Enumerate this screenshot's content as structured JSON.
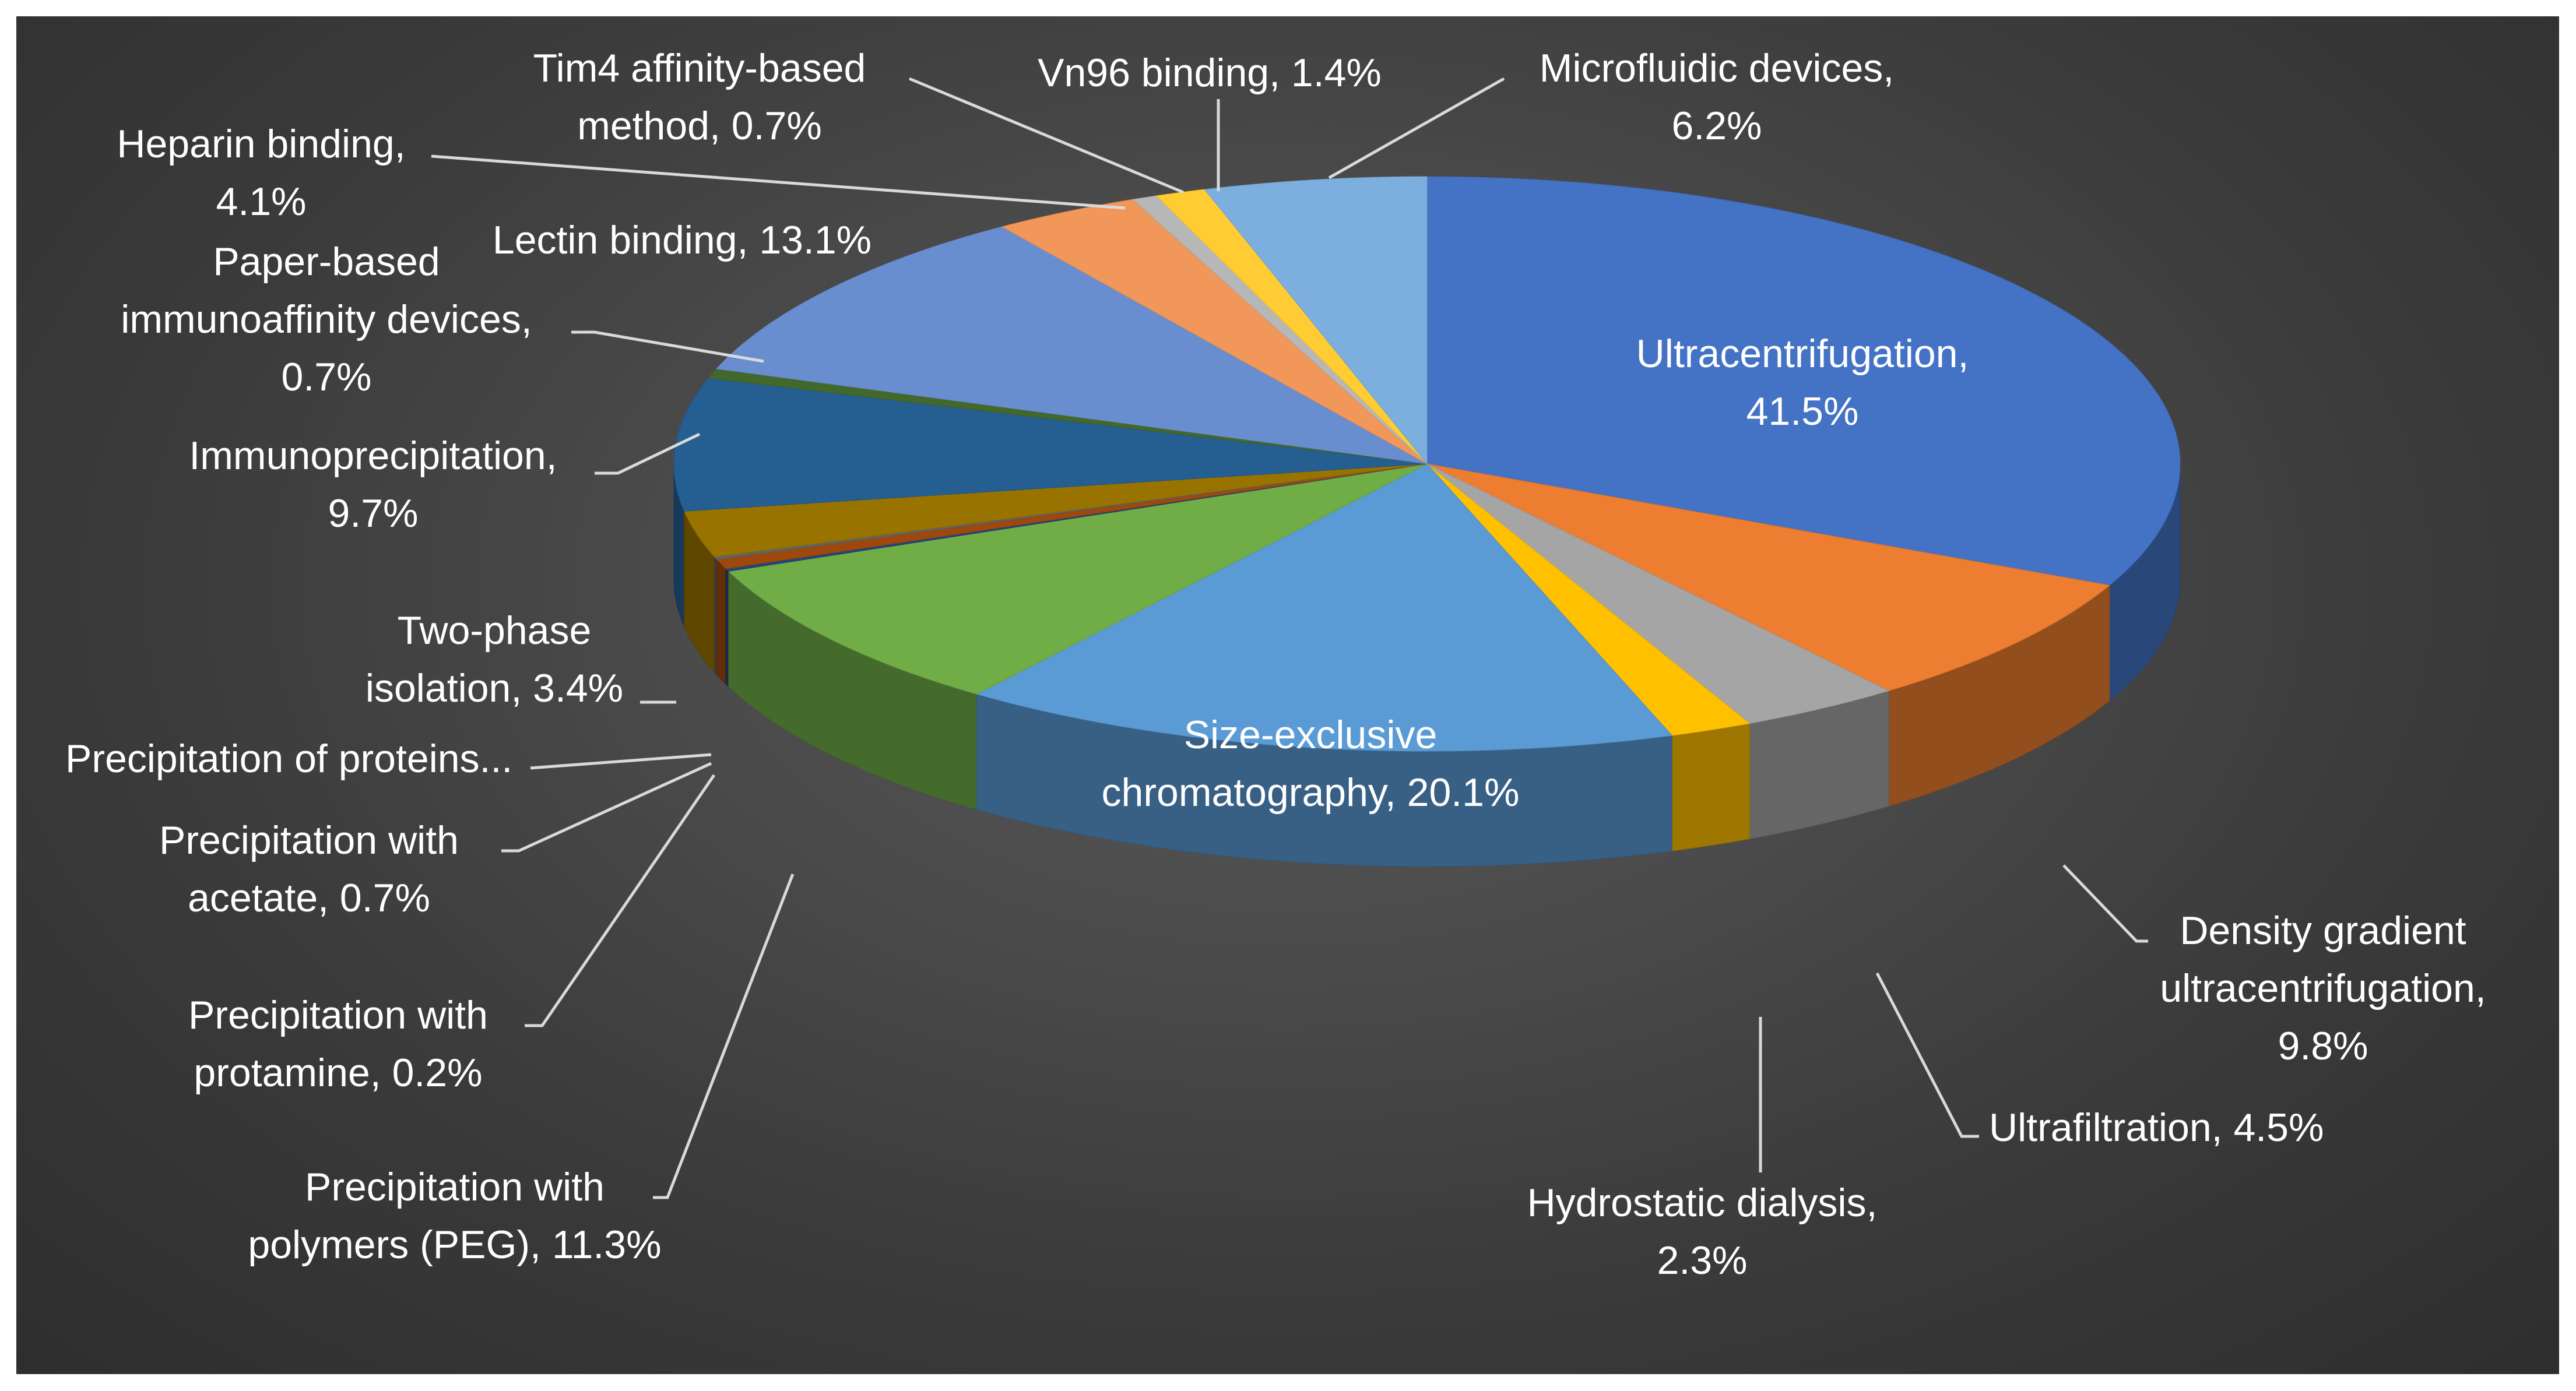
{
  "chart_data": {
    "type": "pie",
    "title": "",
    "style": "3d",
    "background": "#404040",
    "slices": [
      {
        "name": "Ultracentrifugation",
        "value": 41.5,
        "color": "#4472C4",
        "label": [
          "Ultracentrifugation,",
          "41.5%"
        ]
      },
      {
        "name": "Density gradient ultracentrifugation",
        "value": 9.8,
        "color": "#ED7D31",
        "label": [
          "Density gradient",
          "ultracentrifugation,",
          "9.8%"
        ]
      },
      {
        "name": "Ultrafiltration",
        "value": 4.5,
        "color": "#A5A5A5",
        "label": [
          "Ultrafiltration, 4.5%"
        ]
      },
      {
        "name": "Hydrostatic dialysis",
        "value": 2.3,
        "color": "#FFC000",
        "label": [
          "Hydrostatic dialysis,",
          "2.3%"
        ]
      },
      {
        "name": "Size-exclusive chromatography",
        "value": 20.1,
        "color": "#5B9BD5",
        "label": [
          "Size-exclusive",
          "chromatography, 20.1%"
        ]
      },
      {
        "name": "Precipitation with polymers (PEG)",
        "value": 11.3,
        "color": "#70AD47",
        "label": [
          "Precipitation with",
          "polymers (PEG), 11.3%"
        ]
      },
      {
        "name": "Precipitation with protamine",
        "value": 0.2,
        "color": "#264478",
        "label": [
          "Precipitation with",
          "protamine, 0.2%"
        ]
      },
      {
        "name": "Precipitation with acetate",
        "value": 0.7,
        "color": "#9E480E",
        "label": [
          "Precipitation with",
          "acetate, 0.7%"
        ]
      },
      {
        "name": "Precipitation of proteins...",
        "value": 0.2,
        "color": "#636363",
        "label": [
          "Precipitation of proteins..."
        ]
      },
      {
        "name": "Two-phase isolation",
        "value": 3.4,
        "color": "#997300",
        "label": [
          "Two-phase",
          "isolation, 3.4%"
        ]
      },
      {
        "name": "Immunoprecipitation",
        "value": 9.7,
        "color": "#255E91",
        "label": [
          "Immunoprecipitation,",
          "9.7%"
        ]
      },
      {
        "name": "Paper-based immunoaffinity devices",
        "value": 0.7,
        "color": "#43682B",
        "label": [
          "Paper-based",
          "immunoaffinity devices,",
          "0.7%"
        ]
      },
      {
        "name": "Lectin binding",
        "value": 13.1,
        "color": "#698ED0",
        "label": [
          "Lectin binding, 13.1%"
        ]
      },
      {
        "name": "Heparin binding",
        "value": 4.1,
        "color": "#F1975A",
        "label": [
          "Heparin binding,",
          "4.1%"
        ]
      },
      {
        "name": "Tim4 affinity-based method",
        "value": 0.7,
        "color": "#B7B7B7",
        "label": [
          "Tim4 affinity-based",
          "method, 0.7%"
        ]
      },
      {
        "name": "Vn96 binding",
        "value": 1.4,
        "color": "#FFCD33",
        "label": [
          "Vn96 binding, 1.4%"
        ]
      },
      {
        "name": "Microfluidic devices",
        "value": 6.2,
        "color": "#7CAFDD",
        "label": [
          "Microfluidic devices,",
          "6.2%"
        ]
      }
    ]
  }
}
